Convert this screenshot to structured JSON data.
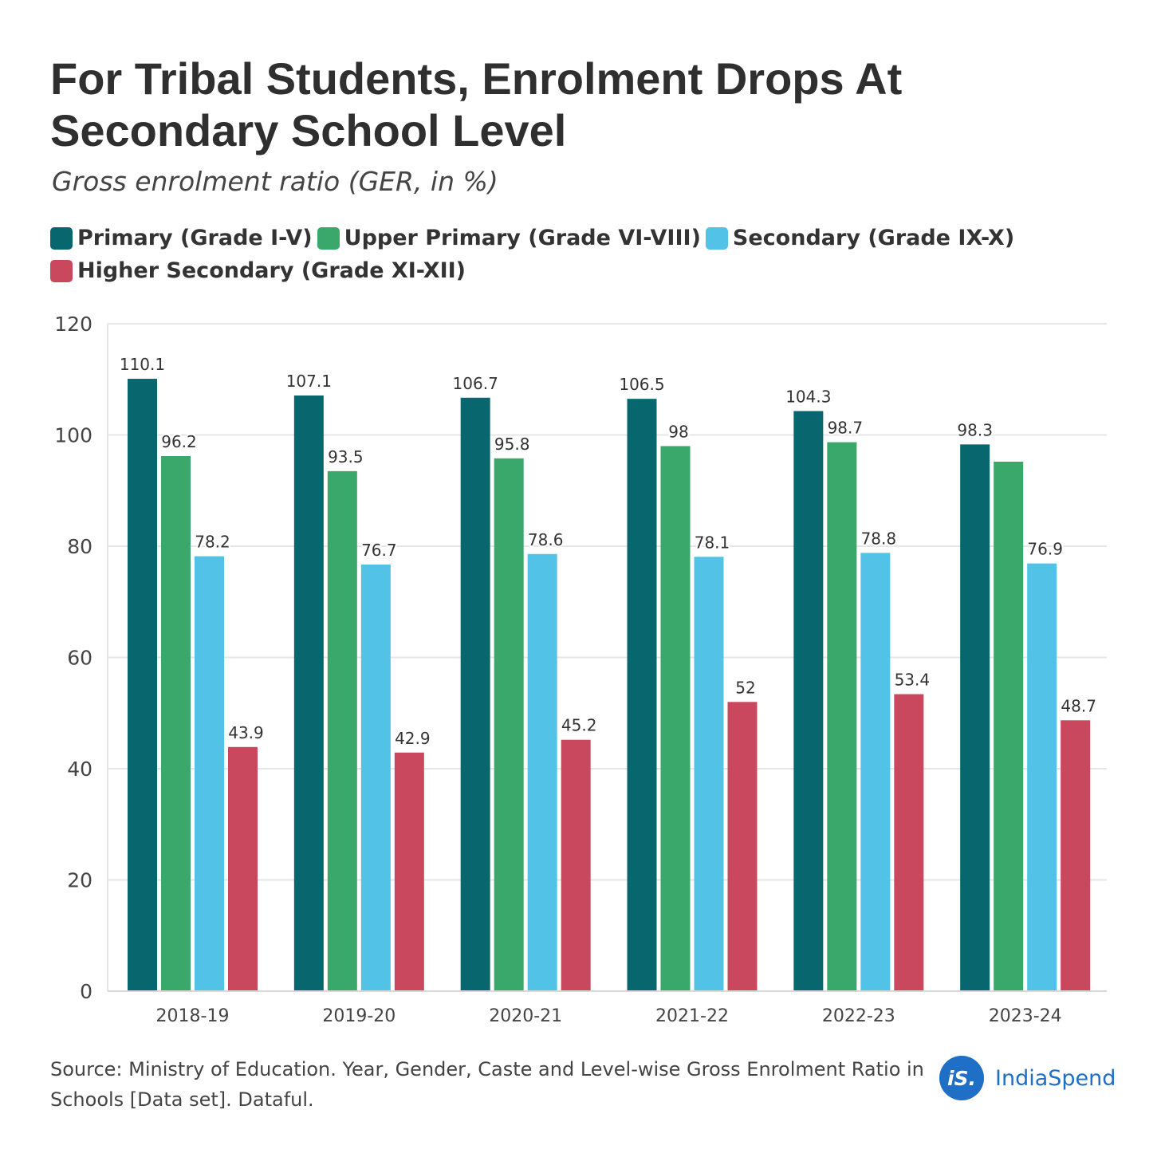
{
  "title": "For Tribal Students, Enrolment Drops At Secondary School Level",
  "subtitle": "Gross enrolment ratio (GER, in %)",
  "source": "Source: Ministry of Education. Year, Gender, Caste and Level-wise Gross Enrolment Ratio in Schools [Data set]. Dataful.",
  "brand": {
    "badge": "iS.",
    "name": "IndiaSpend",
    "color": "#1f6fc6"
  },
  "chart_data": {
    "type": "bar",
    "title": "For Tribal Students, Enrolment Drops At Secondary School Level",
    "subtitle": "Gross enrolment ratio (GER, in %)",
    "categories": [
      "2018-19",
      "2019-20",
      "2020-21",
      "2021-22",
      "2022-23",
      "2023-24"
    ],
    "series": [
      {
        "name": "Primary (Grade I-V)",
        "color": "#08666f",
        "values": [
          110.1,
          107.1,
          106.7,
          106.5,
          104.3,
          98.3
        ],
        "labels": [
          "110.1",
          "107.1",
          "106.7",
          "106.5",
          "104.3",
          "98.3"
        ]
      },
      {
        "name": "Upper Primary (Grade VI-VIII)",
        "color": "#3aa76b",
        "values": [
          96.2,
          93.5,
          95.8,
          98,
          98.7,
          95.2
        ],
        "labels": [
          "96.2",
          "93.5",
          "95.8",
          "98",
          "98.7",
          ""
        ]
      },
      {
        "name": "Secondary (Grade IX-X)",
        "color": "#52c3e6",
        "values": [
          78.2,
          76.7,
          78.6,
          78.1,
          78.8,
          76.9
        ],
        "labels": [
          "78.2",
          "76.7",
          "78.6",
          "78.1",
          "78.8",
          "76.9"
        ]
      },
      {
        "name": "Higher Secondary (Grade XI-XII)",
        "color": "#c9485e",
        "values": [
          43.9,
          42.9,
          45.2,
          52,
          53.4,
          48.7
        ],
        "labels": [
          "43.9",
          "42.9",
          "45.2",
          "52",
          "53.4",
          "48.7"
        ]
      }
    ],
    "ylim": [
      0,
      120
    ],
    "yticks": [
      0,
      20,
      40,
      60,
      80,
      100,
      120
    ],
    "xlabel": "",
    "ylabel": "",
    "grid": true,
    "legend_position": "top"
  }
}
